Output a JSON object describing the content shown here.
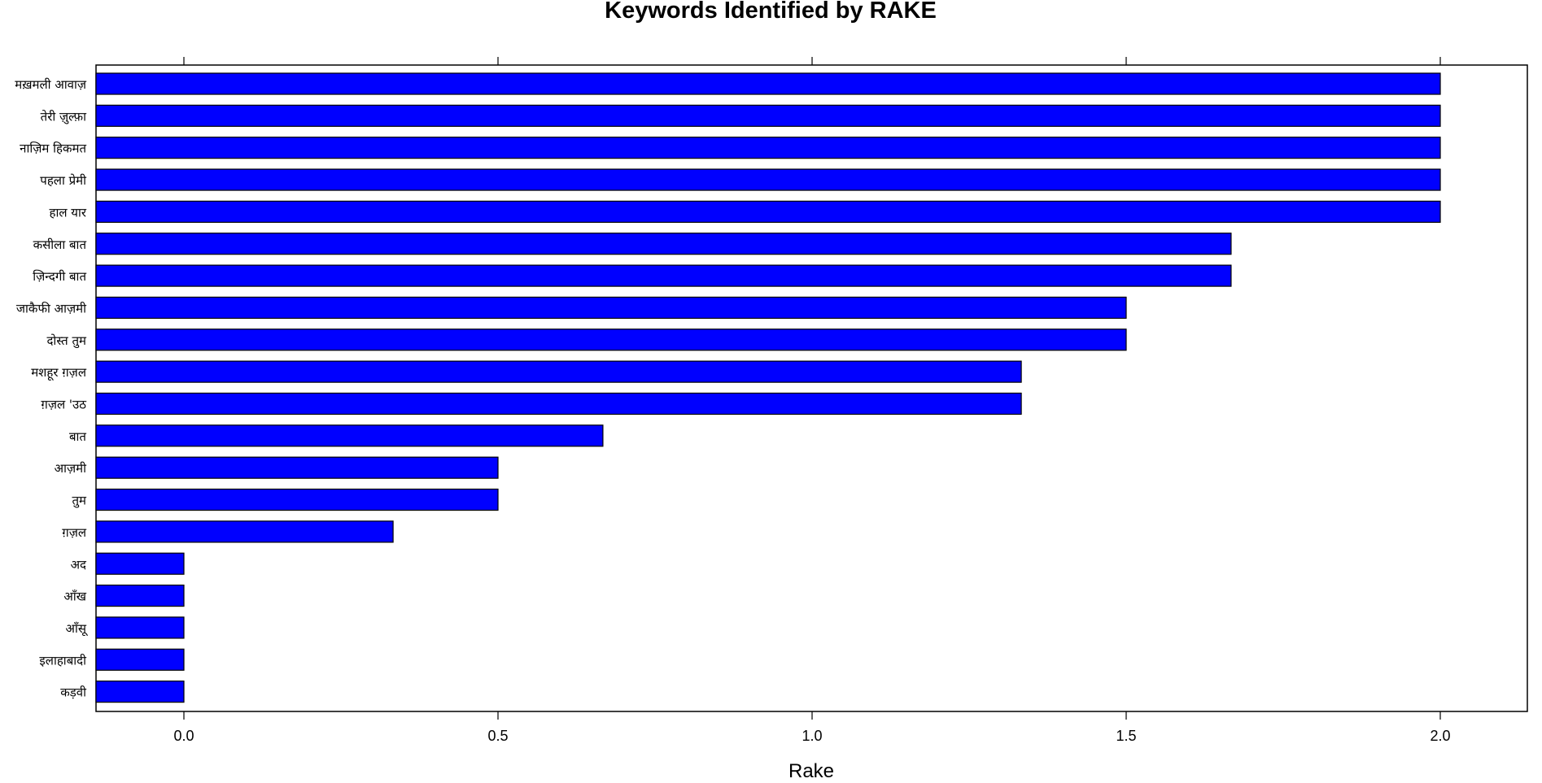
{
  "chart_data": {
    "type": "bar",
    "orientation": "horizontal",
    "title": "Keywords Identified by RAKE",
    "xlabel": "Rake",
    "ylabel": "",
    "xlim": [
      -0.14,
      2.14
    ],
    "xticks": [
      0.0,
      0.5,
      1.0,
      1.5,
      2.0
    ],
    "xtick_labels": [
      "0.0",
      "0.5",
      "1.0",
      "1.5",
      "2.0"
    ],
    "grid": false,
    "bar_color": "#0000FF",
    "categories": [
      "मख़मली आवाज़",
      "तेरी ज़ुल्फ़ा",
      "नाज़िम हिकमत",
      "पहला प्रेमी",
      "हाल यार",
      "कसीला बात",
      "ज़िन्दगी बात",
      "जाकैफी आज़मी",
      "दोस्त तुम",
      "मशहूर ग़ज़ल",
      "ग़ज़ल 'उठ",
      "बात",
      "आज़मी",
      "तुम",
      "ग़ज़ल",
      "अद",
      "आँख",
      "आँसू",
      "इलाहाबादी",
      "कड़वी"
    ],
    "values": [
      2.0,
      2.0,
      2.0,
      2.0,
      2.0,
      1.667,
      1.667,
      1.5,
      1.5,
      1.333,
      1.333,
      0.667,
      0.5,
      0.5,
      0.333,
      0.0,
      0.0,
      0.0,
      0.0,
      0.0
    ]
  }
}
